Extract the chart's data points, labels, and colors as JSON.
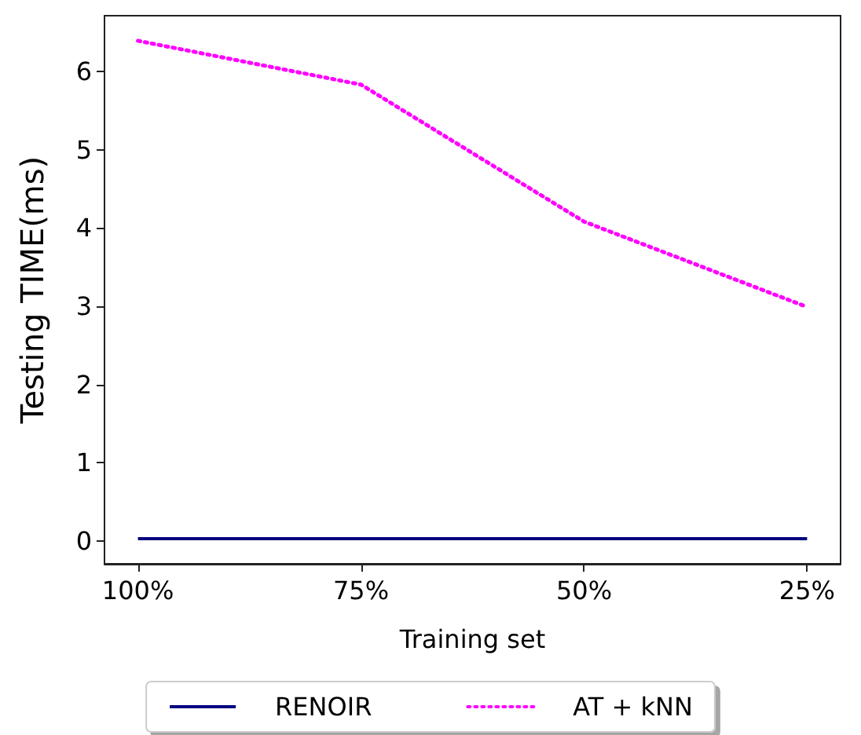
{
  "chart_data": {
    "type": "line",
    "xlabel": "Training set",
    "ylabel": "Testing TIME(ms)",
    "categories": [
      "100%",
      "75%",
      "50%",
      "25%"
    ],
    "ylim": [
      -0.29,
      6.71
    ],
    "yticks": [
      0,
      1,
      2,
      3,
      4,
      5,
      6
    ],
    "grid": false,
    "legend": "bottom",
    "marker": "none",
    "series": [
      {
        "name": "RENOIR",
        "color": "#00007f",
        "line_style": "solid",
        "values": [
          0.03,
          0.03,
          0.03,
          0.03
        ]
      },
      {
        "name": "AT + kNN",
        "color": "#ff00ff",
        "line_style": "dotted",
        "values": [
          6.39,
          5.83,
          4.08,
          2.99
        ]
      }
    ]
  }
}
